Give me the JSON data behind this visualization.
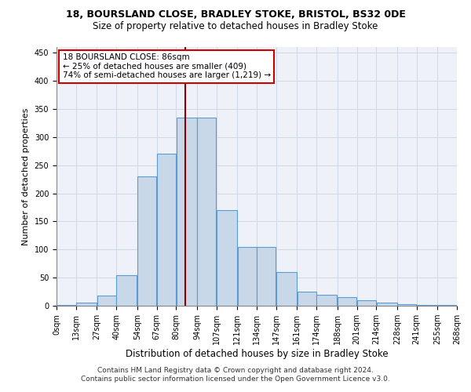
{
  "title1": "18, BOURSLAND CLOSE, BRADLEY STOKE, BRISTOL, BS32 0DE",
  "title2": "Size of property relative to detached houses in Bradley Stoke",
  "xlabel": "Distribution of detached houses by size in Bradley Stoke",
  "ylabel": "Number of detached properties",
  "footer1": "Contains HM Land Registry data © Crown copyright and database right 2024.",
  "footer2": "Contains public sector information licensed under the Open Government Licence v3.0.",
  "annotation_title": "18 BOURSLAND CLOSE: 86sqm",
  "annotation_line1": "← 25% of detached houses are smaller (409)",
  "annotation_line2": "74% of semi-detached houses are larger (1,219) →",
  "property_size": 86,
  "bin_edges": [
    0,
    13,
    27,
    40,
    54,
    67,
    80,
    94,
    107,
    121,
    134,
    147,
    161,
    174,
    188,
    201,
    214,
    228,
    241,
    255,
    268
  ],
  "bar_heights": [
    1,
    5,
    18,
    55,
    230,
    270,
    335,
    335,
    170,
    105,
    105,
    60,
    25,
    20,
    15,
    10,
    5,
    3,
    1,
    1
  ],
  "bar_color": "#c8d8e8",
  "bar_edge_color": "#5b9bd5",
  "vline_color": "#8b0000",
  "annotation_box_color": "#ffffff",
  "annotation_box_edge": "#cc0000",
  "ylim": [
    0,
    460
  ],
  "yticks": [
    0,
    50,
    100,
    150,
    200,
    250,
    300,
    350,
    400,
    450
  ],
  "grid_color": "#d0d8e8",
  "bg_color": "#eef2f8",
  "title1_fontsize": 9,
  "title2_fontsize": 8.5,
  "xlabel_fontsize": 8.5,
  "ylabel_fontsize": 8,
  "tick_fontsize": 7,
  "footer_fontsize": 6.5,
  "ann_fontsize": 7.5
}
